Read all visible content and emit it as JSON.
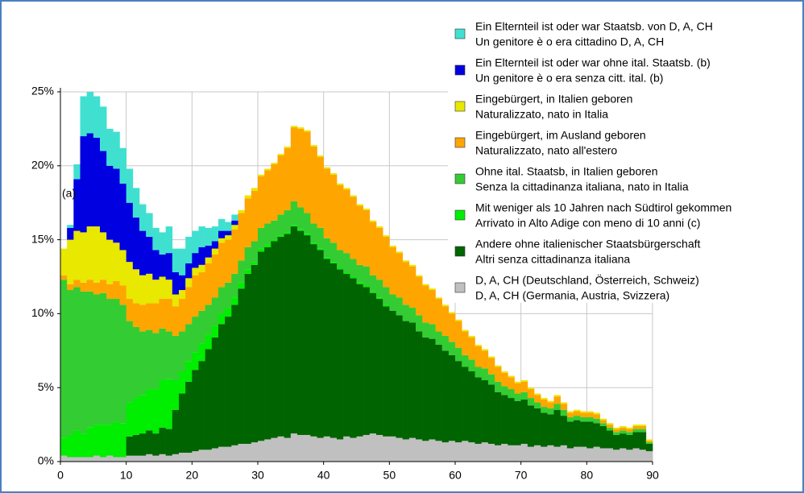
{
  "chart_data": {
    "type": "stacked-bar",
    "annotation": "(a)",
    "x": [
      0,
      1,
      2,
      3,
      4,
      5,
      6,
      7,
      8,
      9,
      10,
      11,
      12,
      13,
      14,
      15,
      16,
      17,
      18,
      19,
      20,
      21,
      22,
      23,
      24,
      25,
      26,
      27,
      28,
      29,
      30,
      31,
      32,
      33,
      34,
      35,
      36,
      37,
      38,
      39,
      40,
      41,
      42,
      43,
      44,
      45,
      46,
      47,
      48,
      49,
      50,
      51,
      52,
      53,
      54,
      55,
      56,
      57,
      58,
      59,
      60,
      61,
      62,
      63,
      64,
      65,
      66,
      67,
      68,
      69,
      70,
      71,
      72,
      73,
      74,
      75,
      76,
      77,
      78,
      79,
      80,
      81,
      82,
      83,
      84,
      85,
      86,
      87,
      88,
      89
    ],
    "xlim": [
      0,
      90
    ],
    "xticks": [
      0,
      10,
      20,
      30,
      40,
      50,
      60,
      70,
      80,
      90
    ],
    "ylim": [
      0,
      25
    ],
    "yticks": [
      {
        "value": 0,
        "label": "0%"
      },
      {
        "value": 5,
        "label": "5%"
      },
      {
        "value": 10,
        "label": "10%"
      },
      {
        "value": 15,
        "label": "15%"
      },
      {
        "value": 20,
        "label": "20%"
      },
      {
        "value": 25,
        "label": "25%"
      }
    ],
    "grid": true,
    "legend": "top-right",
    "series": [
      {
        "name": "Ein Elternteil ist oder war Staatsb. von D, A, CH",
        "name_it": "Un genitore è o era cittadino D, A, CH",
        "color": "#40e0d0",
        "values": [
          0,
          0.2,
          1.0,
          2.7,
          2.8,
          2.8,
          3.0,
          2.5,
          2.5,
          2.4,
          2.3,
          2.0,
          1.8,
          1.6,
          1.5,
          1.5,
          1.8,
          1.6,
          1.8,
          1.8,
          1.5,
          1.4,
          1.2,
          1.0,
          0.8,
          0.6,
          0.4,
          0,
          0,
          0,
          0,
          0,
          0,
          0,
          0,
          0,
          0,
          0,
          0,
          0,
          0,
          0,
          0,
          0,
          0,
          0,
          0,
          0,
          0,
          0,
          0,
          0,
          0,
          0,
          0,
          0,
          0,
          0,
          0,
          0,
          0,
          0,
          0,
          0,
          0,
          0,
          0,
          0,
          0,
          0,
          0,
          0,
          0,
          0,
          0,
          0,
          0,
          0,
          0,
          0,
          0,
          0,
          0,
          0,
          0,
          0,
          0,
          0,
          0,
          0
        ]
      },
      {
        "name": "Ein Elternteil ist oder war ohne ital. Staatsb. (b)",
        "name_it": "Un genitore è o era senza citt. ital. (b)",
        "color": "#0000e0",
        "values": [
          0,
          0.8,
          3.5,
          6.5,
          6.3,
          6.0,
          5.5,
          5.0,
          5.0,
          4.5,
          4.0,
          3.5,
          3.0,
          2.5,
          2.0,
          1.5,
          1.8,
          1.5,
          1.0,
          1.0,
          1.0,
          1.2,
          0.8,
          0.5,
          0.5,
          0.3,
          0.3,
          0,
          0,
          0,
          0,
          0,
          0,
          0,
          0,
          0,
          0,
          0,
          0,
          0,
          0,
          0,
          0,
          0,
          0,
          0,
          0,
          0,
          0,
          0,
          0,
          0,
          0,
          0,
          0,
          0,
          0,
          0,
          0,
          0,
          0,
          0,
          0,
          0,
          0,
          0,
          0,
          0,
          0,
          0,
          0,
          0,
          0,
          0,
          0,
          0,
          0,
          0,
          0,
          0,
          0,
          0,
          0,
          0,
          0,
          0,
          0,
          0,
          0,
          0
        ]
      },
      {
        "name": "Eingebürgert, in Italien geboren",
        "name_it": "Naturalizzato, nato in Italia",
        "color": "#e8e800",
        "values": [
          1.8,
          3.0,
          3.3,
          3.4,
          3.6,
          3.8,
          3.2,
          3.0,
          2.6,
          2.4,
          2.5,
          2.3,
          2.0,
          2.0,
          1.6,
          1.5,
          1.3,
          0.8,
          0.6,
          0.6,
          0.5,
          0.5,
          0.4,
          0.4,
          0.3,
          0.3,
          0.3,
          0.2,
          0.2,
          0.2,
          0.1,
          0.1,
          0.1,
          0.1,
          0.1,
          0.1,
          0.1,
          0.1,
          0.1,
          0.1,
          0.1,
          0.1,
          0.1,
          0.1,
          0.1,
          0.1,
          0.1,
          0.1,
          0.1,
          0.1,
          0.1,
          0.1,
          0.1,
          0.1,
          0.1,
          0.1,
          0.1,
          0.1,
          0.1,
          0.1,
          0.1,
          0.1,
          0.1,
          0.1,
          0.1,
          0.1,
          0.1,
          0.1,
          0.1,
          0.1,
          0.1,
          0.1,
          0.1,
          0.1,
          0.1,
          0.1,
          0.1,
          0.1,
          0.1,
          0.1,
          0.1,
          0.1,
          0.1,
          0.1,
          0.1,
          0.1,
          0.1,
          0.1,
          0.1,
          0.1
        ]
      },
      {
        "name": "Eingebürgert, im Ausland geboren",
        "name_it": "Naturalizzato, nato all'estero",
        "color": "#ffa500",
        "values": [
          0.3,
          0.4,
          0.5,
          0.6,
          0.8,
          0.8,
          0.9,
          1.0,
          1.2,
          1.3,
          1.5,
          1.6,
          1.8,
          1.8,
          2.0,
          2.0,
          2.2,
          2.0,
          2.2,
          2.5,
          2.8,
          2.6,
          2.8,
          2.9,
          3.0,
          2.9,
          3.0,
          3.2,
          3.3,
          3.4,
          3.5,
          3.6,
          3.8,
          4.0,
          4.2,
          5.0,
          5.3,
          5.5,
          5.2,
          4.8,
          4.7,
          4.6,
          4.4,
          4.3,
          4.2,
          4.0,
          3.8,
          3.6,
          3.5,
          3.4,
          3.2,
          3.0,
          2.9,
          2.8,
          2.6,
          2.5,
          2.3,
          2.2,
          2.0,
          1.9,
          1.8,
          1.6,
          1.5,
          1.4,
          1.2,
          1.1,
          1.0,
          0.9,
          0.8,
          0.7,
          0.7,
          0.6,
          0.5,
          0.5,
          0.4,
          0.5,
          0.4,
          0.3,
          0.3,
          0.3,
          0.3,
          0.3,
          0.2,
          0.2,
          0.2,
          0.2,
          0.2,
          0.2,
          0.2,
          0.1
        ]
      },
      {
        "name": "Ohne ital. Staatsb, in Italien geboren",
        "name_it": "Senza la cittadinanza italiana, nato in Italia",
        "color": "#33cc33",
        "values": [
          10.7,
          9.8,
          9.7,
          9.6,
          9.2,
          8.8,
          8.9,
          8.5,
          8.3,
          8.0,
          5.5,
          4.8,
          4.3,
          4.0,
          3.8,
          3.5,
          3.2,
          3.0,
          2.7,
          2.5,
          2.4,
          2.2,
          2.0,
          1.9,
          1.8,
          1.7,
          1.6,
          1.5,
          1.5,
          1.4,
          1.4,
          1.4,
          1.3,
          1.4,
          1.5,
          1.6,
          1.5,
          1.4,
          1.3,
          1.4,
          1.3,
          1.3,
          1.2,
          1.3,
          1.2,
          1.2,
          1.3,
          1.1,
          1.2,
          1.2,
          1.1,
          1.2,
          1.1,
          1.0,
          1.1,
          1.0,
          1.0,
          0.9,
          1.0,
          0.9,
          0.9,
          0.8,
          0.8,
          0.7,
          0.8,
          0.7,
          0.7,
          0.6,
          0.6,
          0.5,
          0.5,
          0.5,
          0.4,
          0.4,
          0.4,
          0.4,
          0.4,
          0.3,
          0.3,
          0.3,
          0.3,
          0.3,
          0.2,
          0.2,
          0.2,
          0.2,
          0.2,
          0.2,
          0.2,
          0.1
        ]
      },
      {
        "name": "Mit weniger als 10 Jahren nach Südtirol gekommen",
        "name_it": "Arrivato in Alto Adige con meno di 10 anni (c)",
        "color": "#00ee00",
        "values": [
          1.2,
          1.5,
          1.8,
          1.6,
          2.0,
          2.1,
          2.2,
          2.1,
          2.4,
          2.3,
          2.3,
          2.5,
          2.6,
          2.8,
          3.0,
          3.2,
          3.4,
          2.0,
          1.5,
          1.4,
          1.2,
          1.2,
          1.0,
          0.8,
          0.7,
          0.6,
          0.5,
          0.4,
          0.3,
          0.2,
          0.2,
          0.2,
          0.1,
          0.1,
          0.1,
          0.1,
          0.1,
          0.1,
          0.1,
          0.1,
          0.1,
          0.1,
          0.1,
          0.1,
          0.1,
          0.1,
          0.1,
          0.1,
          0.1,
          0.1,
          0,
          0,
          0,
          0,
          0,
          0,
          0,
          0,
          0,
          0,
          0,
          0,
          0,
          0,
          0,
          0,
          0,
          0,
          0,
          0,
          0,
          0,
          0,
          0,
          0,
          0,
          0,
          0,
          0,
          0,
          0,
          0,
          0,
          0,
          0,
          0,
          0,
          0,
          0,
          0
        ]
      },
      {
        "name": "Andere ohne italienischer Staatsbürgerschaft",
        "name_it": "Altri senza cittadinanza italiana",
        "color": "#006400",
        "values": [
          0,
          0,
          0,
          0,
          0,
          0,
          0,
          0,
          0,
          0,
          1.3,
          1.4,
          1.5,
          1.6,
          1.5,
          1.8,
          1.8,
          3.0,
          4.0,
          4.8,
          5.5,
          6.0,
          6.8,
          7.5,
          8.3,
          8.8,
          9.5,
          10.5,
          11.5,
          12.0,
          12.8,
          13.0,
          13.3,
          13.5,
          13.8,
          14.0,
          13.8,
          13.5,
          13.0,
          12.7,
          12.0,
          11.8,
          11.5,
          11.0,
          10.8,
          10.3,
          10.0,
          9.5,
          9.2,
          8.8,
          8.5,
          8.3,
          8.0,
          7.8,
          7.3,
          7.0,
          6.8,
          6.5,
          6.2,
          5.8,
          5.5,
          5.0,
          4.8,
          4.5,
          4.2,
          4.0,
          3.6,
          3.3,
          3.2,
          3.0,
          3.0,
          2.8,
          2.5,
          2.3,
          2.1,
          2.5,
          2.0,
          1.8,
          1.8,
          1.7,
          1.8,
          1.6,
          1.5,
          1.2,
          1.0,
          1.0,
          1.0,
          1.1,
          1.2,
          0.5
        ]
      },
      {
        "name": "D, A, CH (Deutschland, Österreich, Schweiz)",
        "name_it": "D, A, CH (Germania, Austria, Svizzera)",
        "color": "#c0c0c0",
        "values": [
          0.4,
          0.3,
          0.3,
          0.3,
          0.3,
          0.4,
          0.3,
          0.4,
          0.3,
          0.3,
          0.4,
          0.4,
          0.4,
          0.5,
          0.4,
          0.5,
          0.4,
          0.5,
          0.6,
          0.6,
          0.7,
          0.8,
          0.8,
          0.9,
          1.0,
          1.0,
          1.1,
          1.2,
          1.2,
          1.3,
          1.4,
          1.5,
          1.6,
          1.7,
          1.6,
          1.9,
          1.8,
          1.8,
          1.7,
          1.6,
          1.7,
          1.6,
          1.5,
          1.7,
          1.6,
          1.7,
          1.8,
          1.9,
          1.8,
          1.7,
          1.7,
          1.6,
          1.5,
          1.6,
          1.5,
          1.4,
          1.5,
          1.4,
          1.3,
          1.4,
          1.3,
          1.4,
          1.3,
          1.2,
          1.3,
          1.2,
          1.1,
          1.2,
          1.1,
          1.1,
          1.2,
          1.0,
          1.1,
          1.0,
          1.1,
          1.0,
          1.1,
          0.9,
          1.0,
          1.0,
          0.9,
          1.0,
          0.9,
          0.9,
          0.8,
          0.9,
          0.8,
          0.9,
          0.8,
          0.7
        ]
      }
    ]
  }
}
